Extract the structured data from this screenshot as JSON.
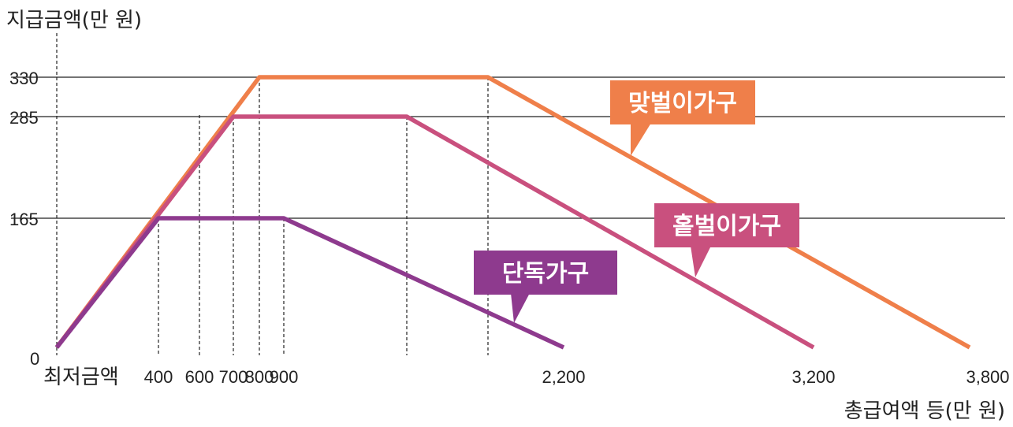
{
  "chart_data": {
    "type": "line",
    "ylabel": "지급금액(만 원)",
    "xlabel": "총급여액 등(만 원)",
    "x_origin_label": "최저금액",
    "y_ticks": [
      0,
      165,
      285,
      330
    ],
    "x_ticks": [
      400,
      600,
      700,
      800,
      900,
      2200,
      3200,
      3800
    ],
    "ylim": [
      0,
      330
    ],
    "grid": "horizontal",
    "series": [
      {
        "name": "맞벌이가구",
        "color": "#ef7f4a",
        "points": [
          [
            0,
            0
          ],
          [
            800,
            330
          ],
          [
            1700,
            330
          ],
          [
            3800,
            0
          ]
        ]
      },
      {
        "name": "홑벌이가구",
        "color": "#c9507e",
        "points": [
          [
            0,
            0
          ],
          [
            700,
            285
          ],
          [
            1400,
            285
          ],
          [
            3200,
            0
          ]
        ]
      },
      {
        "name": "단독가구",
        "color": "#8e3a8e",
        "points": [
          [
            0,
            0
          ],
          [
            400,
            165
          ],
          [
            900,
            165
          ],
          [
            2200,
            0
          ]
        ]
      }
    ],
    "dashed_guides_x": [
      0,
      400,
      600,
      700,
      800,
      900,
      1400,
      1700
    ]
  }
}
